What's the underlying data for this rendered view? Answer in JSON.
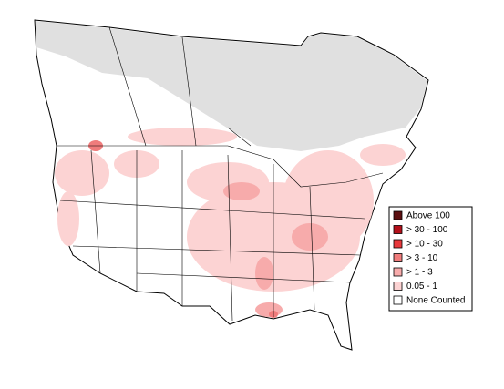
{
  "legend": {
    "items": [
      {
        "label": "Above 100",
        "color": "#5c0f10"
      },
      {
        "label": "> 30 - 100",
        "color": "#b3101a"
      },
      {
        "label": "> 10 - 30",
        "color": "#e8383c"
      },
      {
        "label": "> 3 - 10",
        "color": "#f07c7c"
      },
      {
        "label": "> 1 - 3",
        "color": "#f7abab"
      },
      {
        "label": "0.05 - 1",
        "color": "#fcd3d3"
      },
      {
        "label": "None Counted",
        "color": "#ffffff"
      }
    ]
  }
}
